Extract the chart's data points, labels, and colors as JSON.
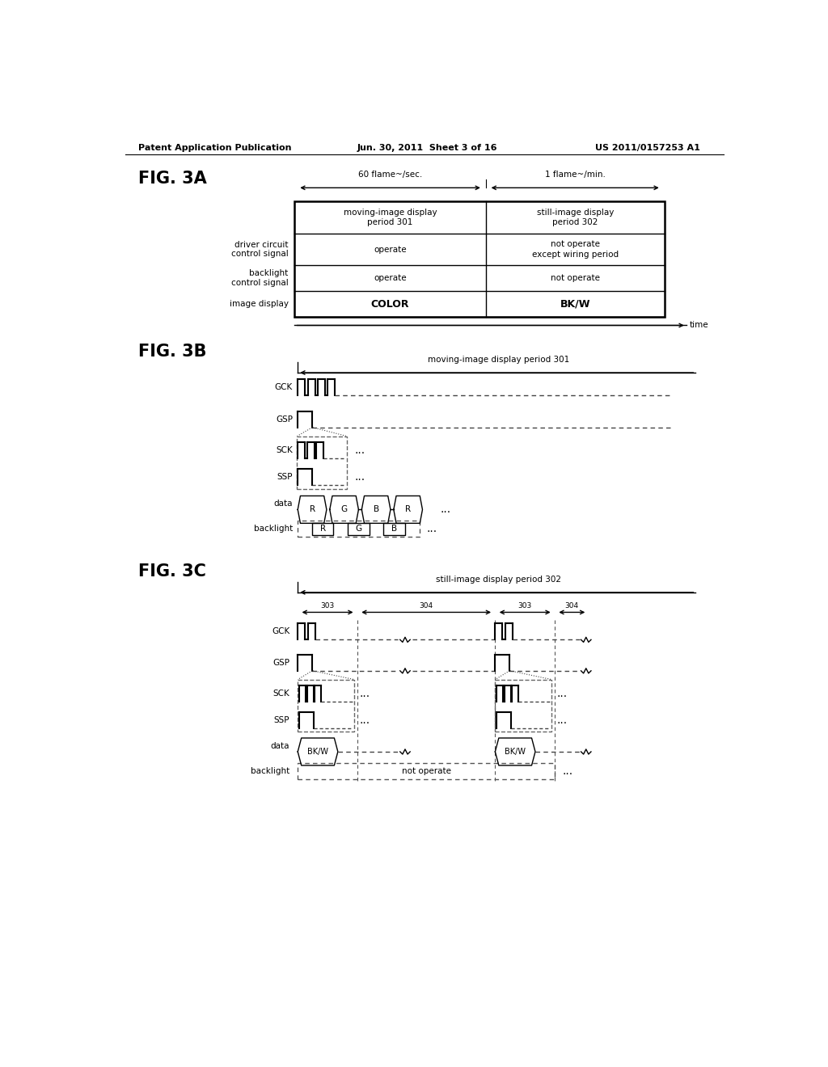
{
  "bg_color": "#ffffff",
  "header_text": "Patent Application Publication",
  "header_date": "Jun. 30, 2011  Sheet 3 of 16",
  "header_patent": "US 2011/0157253 A1",
  "fig3a_label": "FIG. 3A",
  "fig3b_label": "FIG. 3B",
  "fig3c_label": "FIG. 3C",
  "fig3a_freq1": "60 flame~/sec.",
  "fig3a_freq2": "1 flame~/min.",
  "fig3a_col1": "moving-image display\nperiod 301",
  "fig3a_col2": "still-image display\nperiod 302",
  "fig3a_row2_label": "driver circuit\ncontrol signal",
  "fig3a_row2_col1": "operate",
  "fig3a_row2_col2": "not operate\nexcept wiring period",
  "fig3a_row3_label": "backlight\ncontrol signal",
  "fig3a_row3_col1": "operate",
  "fig3a_row3_col2": "not operate",
  "fig3a_row4_label": "image display",
  "fig3a_row4_col1": "COLOR",
  "fig3a_row4_col2": "BK/W",
  "fig3a_time_label": "time",
  "fig3b_title": "moving-image display period 301",
  "fig3c_title": "still-image display period 302",
  "fig3b_signals": [
    "GCK",
    "GSP",
    "SCK",
    "SSP",
    "data",
    "backlight"
  ],
  "fig3c_signals": [
    "GCK",
    "GSP",
    "SCK",
    "SSP",
    "data",
    "backlight"
  ]
}
